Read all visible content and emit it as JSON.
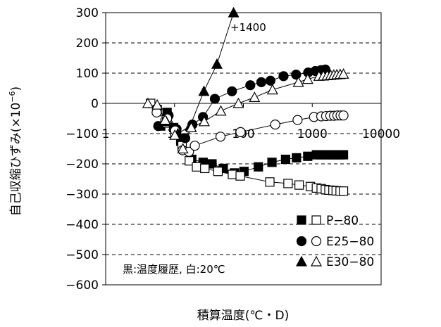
{
  "chart_data": {
    "type": "line",
    "xlabel": "積算温度(℃・D)",
    "ylabel": "自己収縮ひずみ(×10",
    "ylabel_sup": "−6",
    "ylabel_close": ")",
    "x_scale": "log",
    "xlim": [
      1,
      10000
    ],
    "ylim": [
      -600,
      300
    ],
    "y_ticks": [
      300,
      200,
      100,
      0,
      -100,
      -200,
      -300,
      -400,
      -500,
      -600
    ],
    "y_tick_labels": [
      "300",
      "200",
      "100",
      "0",
      "−100",
      "−200",
      "−300",
      "−400",
      "−500",
      "−600"
    ],
    "x_ticks": [
      1,
      10,
      100,
      1000,
      10000
    ],
    "x_tick_labels": [
      "1",
      "10",
      "100",
      "1000",
      "10000"
    ],
    "grid": "horizontal-dashed",
    "legend_placement": "bottom-right",
    "legend": [
      {
        "label": "P−80",
        "symbol": "square"
      },
      {
        "label": "E25−80",
        "symbol": "circle"
      },
      {
        "label": "E30−80",
        "symbol": "triangle"
      }
    ],
    "annotations": {
      "peak_label": "+1400",
      "note": "黒:温度履歴, 白:20℃"
    },
    "series": [
      {
        "symbol": "square",
        "fill": "black",
        "points": [
          [
            6.3,
            -75
          ],
          [
            7.8,
            -30
          ],
          [
            9.7,
            -80
          ],
          [
            12.3,
            -125
          ],
          [
            17.8,
            -185
          ],
          [
            26,
            -195
          ],
          [
            35,
            -200
          ],
          [
            51,
            -215
          ],
          [
            74,
            -230
          ],
          [
            102,
            -225
          ],
          [
            165,
            -210
          ],
          [
            260,
            -195
          ],
          [
            410,
            -185
          ],
          [
            590,
            -180
          ],
          [
            860,
            -175
          ],
          [
            1150,
            -170
          ],
          [
            1350,
            -170
          ],
          [
            1550,
            -170
          ],
          [
            1750,
            -170
          ],
          [
            2000,
            -170
          ],
          [
            2230,
            -170
          ],
          [
            2540,
            -170
          ],
          [
            2840,
            -170
          ]
        ]
      },
      {
        "symbol": "square",
        "fill": "white",
        "points": [
          [
            4.5,
            0
          ],
          [
            5.6,
            -20
          ],
          [
            7.3,
            -65
          ],
          [
            10.1,
            -100
          ],
          [
            12.9,
            -140
          ],
          [
            16.4,
            -190
          ],
          [
            20.9,
            -210
          ],
          [
            27.5,
            -215
          ],
          [
            42.8,
            -225
          ],
          [
            69.4,
            -235
          ],
          [
            90,
            -240
          ],
          [
            242,
            -260
          ],
          [
            445,
            -265
          ],
          [
            645,
            -270
          ],
          [
            940,
            -275
          ],
          [
            1150,
            -280
          ],
          [
            1350,
            -282
          ],
          [
            1550,
            -285
          ],
          [
            1750,
            -287
          ],
          [
            2000,
            -288
          ],
          [
            2230,
            -289
          ],
          [
            2540,
            -290
          ],
          [
            2840,
            -290
          ]
        ]
      },
      {
        "symbol": "circle",
        "fill": "black",
        "points": [
          [
            5.8,
            -75
          ],
          [
            8.2,
            -40
          ],
          [
            10.7,
            -85
          ],
          [
            14.3,
            -115
          ],
          [
            18.2,
            -70
          ],
          [
            25.9,
            -45
          ],
          [
            38.5,
            15
          ],
          [
            68.3,
            40
          ],
          [
            126,
            60
          ],
          [
            182,
            70
          ],
          [
            247,
            75
          ],
          [
            383,
            90
          ],
          [
            583,
            95
          ],
          [
            872,
            102
          ],
          [
            1110,
            107
          ],
          [
            1340,
            110
          ],
          [
            1550,
            112
          ]
        ]
      },
      {
        "symbol": "circle",
        "fill": "white",
        "points": [
          [
            5.5,
            -30
          ],
          [
            7.8,
            -50
          ],
          [
            10.2,
            -90
          ],
          [
            13.1,
            -155
          ],
          [
            16.2,
            -160
          ],
          [
            19.7,
            -140
          ],
          [
            46.5,
            -110
          ],
          [
            90.8,
            -95
          ],
          [
            290,
            -70
          ],
          [
            612,
            -55
          ],
          [
            1060,
            -45
          ],
          [
            1350,
            -43
          ],
          [
            1590,
            -42
          ],
          [
            1830,
            -41
          ],
          [
            2070,
            -41
          ],
          [
            2320,
            -40
          ],
          [
            2580,
            -40
          ],
          [
            2840,
            -40
          ]
        ]
      },
      {
        "symbol": "triangle",
        "fill": "black",
        "points": [
          [
            7.6,
            -60
          ],
          [
            11.2,
            -100
          ],
          [
            16.8,
            -75
          ],
          [
            26.7,
            40
          ],
          [
            41.3,
            130
          ],
          [
            72,
            300
          ]
        ]
      },
      {
        "symbol": "triangle",
        "fill": "white",
        "points": [
          [
            4.1,
            0
          ],
          [
            5.6,
            -5
          ],
          [
            7.3,
            -55
          ],
          [
            10.1,
            -105
          ],
          [
            13.2,
            -150
          ],
          [
            17.5,
            -80
          ],
          [
            27,
            -60
          ],
          [
            47,
            -25
          ],
          [
            84.7,
            0
          ],
          [
            145,
            20
          ],
          [
            265,
            45
          ],
          [
            630,
            70
          ],
          [
            860,
            80
          ],
          [
            1250,
            90
          ],
          [
            1450,
            91
          ],
          [
            1650,
            92
          ],
          [
            1850,
            93
          ],
          [
            2050,
            94
          ],
          [
            2280,
            95
          ],
          [
            2540,
            96
          ],
          [
            2840,
            97
          ]
        ]
      }
    ]
  }
}
